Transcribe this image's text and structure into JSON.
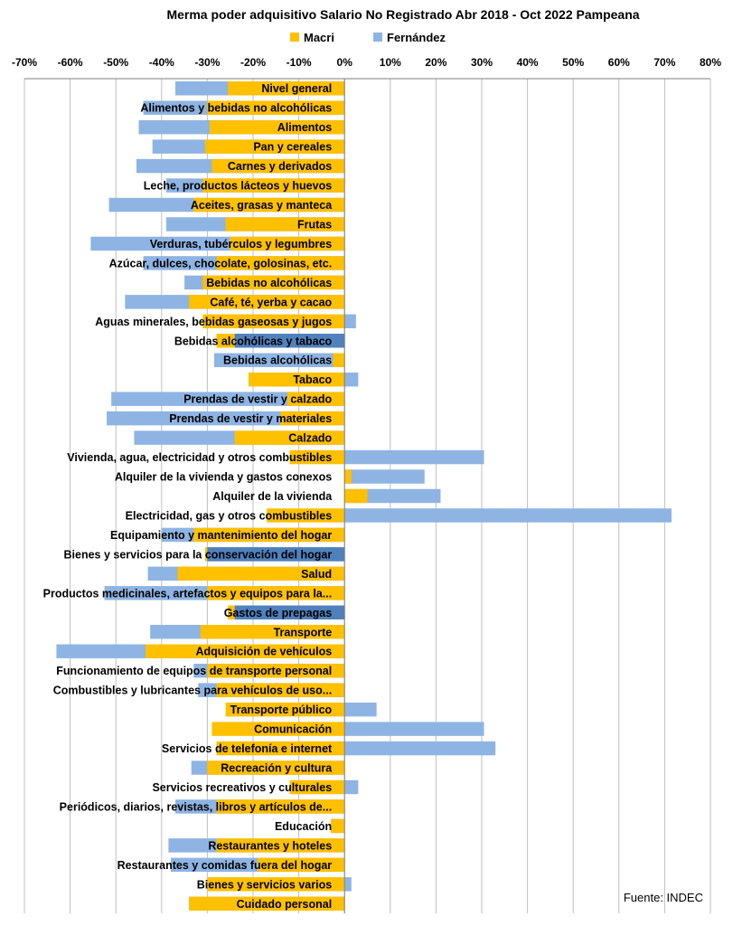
{
  "chart_data": {
    "type": "bar",
    "orientation": "horizontal",
    "title": "Merma poder adquisitivo Salario No Registrado Abr 2018 - Oct 2022  Pampeana",
    "source": "Fuente: INDEC",
    "xlim": [
      -70,
      80
    ],
    "x_ticks": [
      "-70%",
      "-60%",
      "-50%",
      "-40%",
      "-30%",
      "-20%",
      "-10%",
      "0%",
      "10%",
      "20%",
      "30%",
      "40%",
      "50%",
      "60%",
      "70%",
      "80%"
    ],
    "legend_position": "top",
    "grid": true,
    "colors": {
      "Macri": "#ffc000",
      "Fernández": "#8eb4e3",
      "overlap": "#4f81bd"
    },
    "categories": [
      "Nivel general",
      "Alimentos y bebidas no alcohólicas",
      "Alimentos",
      "Pan y cereales",
      "Carnes y derivados",
      "Leche, productos lácteos y huevos",
      "Aceites, grasas y manteca",
      "Frutas",
      "Verduras, tubérculos y legumbres",
      "Azúcar, dulces, chocolate, golosinas, etc.",
      "Bebidas no alcohólicas",
      "Café, té, yerba y cacao",
      "Aguas minerales, bebidas gaseosas y jugos",
      "Bebidas alcohólicas y tabaco",
      "Bebidas alcohólicas",
      "Tabaco",
      "Prendas de vestir y calzado",
      "Prendas de vestir y materiales",
      "Calzado",
      "Vivienda, agua, electricidad y otros combustibles",
      "Alquiler de la vivienda y gastos conexos",
      "Alquiler de la vivienda",
      "Electricidad, gas y otros combustibles",
      "Equipamiento y mantenimiento del hogar",
      "Bienes y servicios para la conservación del hogar",
      "Salud",
      "Productos medicinales, artefactos y equipos para la...",
      "Gastos de prepagas",
      "Transporte",
      "Adquisición de vehículos",
      "Funcionamiento de equipos de transporte personal",
      "Combustibles y lubricantes para vehículos de uso...",
      "Transporte público",
      "Comunicación",
      "Servicios  de telefonía e internet",
      "Recreación y cultura",
      "Servicios recreativos y culturales",
      "Periódicos, diarios, revistas, libros y artículos de...",
      "Educación",
      "Restaurantes y hoteles",
      "Restaurantes y comidas fuera del hogar",
      "Bienes y servicios varios",
      "Cuidado personal"
    ],
    "series": [
      {
        "name": "Macri",
        "values": [
          -25.5,
          -30,
          -29.5,
          -30.5,
          -29,
          -31,
          -33,
          -26,
          -25,
          -28,
          -31,
          -34,
          -31,
          -28,
          -2.5,
          -21,
          -12.5,
          -14,
          -24,
          -12,
          1.5,
          5,
          -17,
          -33,
          -30.5,
          -36.5,
          -30,
          -25.5,
          -31.5,
          -43.5,
          -30,
          -28,
          -26,
          -29,
          -28,
          -30,
          -12,
          -28,
          -3,
          -28,
          -19,
          -30,
          -34
        ]
      },
      {
        "name": "Fernández",
        "values": [
          -37,
          -44,
          -45,
          -42,
          -45.5,
          -39,
          -51.5,
          -39,
          -55.5,
          -44,
          -35,
          -48,
          2.5,
          -24,
          -28.5,
          3,
          -51,
          -52,
          -46,
          30.5,
          17.5,
          21,
          71.5,
          -40,
          -30,
          -43,
          -52.5,
          -24,
          -42.5,
          -63,
          -33,
          -32,
          7,
          30.5,
          33,
          -33.5,
          3,
          -37,
          -3,
          -38.5,
          -38,
          1.5,
          -34
        ]
      }
    ]
  }
}
